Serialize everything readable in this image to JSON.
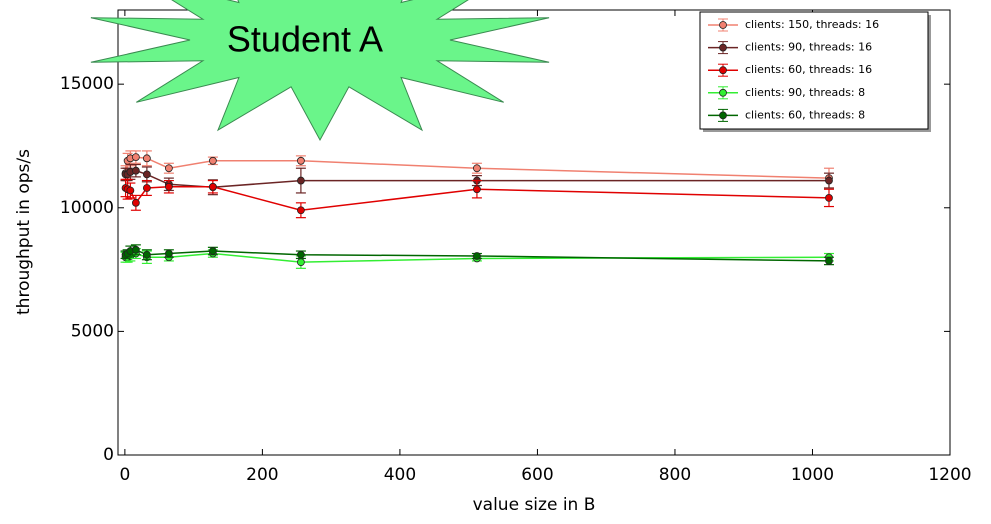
{
  "chart_data": {
    "type": "line",
    "annotation": "Student A",
    "xlabel": "value size in B",
    "ylabel": "throughput in ops/s",
    "x": [
      1,
      4,
      8,
      16,
      32,
      64,
      128,
      256,
      512,
      1024
    ],
    "xlim": [
      -10,
      1200
    ],
    "xticks": [
      0,
      200,
      400,
      600,
      800,
      1000,
      1200
    ],
    "ylim": [
      0,
      18000
    ],
    "yticks": [
      0,
      5000,
      10000,
      15000
    ],
    "legend": "upper right",
    "series": [
      {
        "name": "clients: 150, threads: 16",
        "color": "#f08070",
        "values": [
          11400,
          11900,
          12000,
          12050,
          12000,
          11600,
          11900,
          11900,
          11600,
          11200
        ],
        "errors": [
          300,
          300,
          300,
          250,
          300,
          200,
          150,
          200,
          200,
          400
        ]
      },
      {
        "name": "clients: 90, threads: 16",
        "color": "#6b2525",
        "values": [
          11350,
          11350,
          11450,
          11500,
          11350,
          10950,
          10830,
          11100,
          11100,
          11100
        ],
        "errors": [
          250,
          250,
          300,
          250,
          300,
          250,
          300,
          500,
          200,
          300
        ]
      },
      {
        "name": "clients: 60, threads: 16",
        "color": "#e00000",
        "values": [
          10800,
          10750,
          10700,
          10200,
          10800,
          10850,
          10850,
          9900,
          10750,
          10400
        ],
        "errors": [
          350,
          400,
          300,
          300,
          300,
          250,
          250,
          300,
          350,
          350
        ]
      },
      {
        "name": "clients: 90, threads: 8",
        "color": "#33ee33",
        "values": [
          8000,
          8000,
          8050,
          8150,
          8000,
          8000,
          8150,
          7800,
          7950,
          8000
        ],
        "errors": [
          200,
          200,
          200,
          200,
          250,
          150,
          150,
          250,
          100,
          150
        ]
      },
      {
        "name": "clients: 60, threads: 8",
        "color": "#006600",
        "values": [
          8100,
          8150,
          8250,
          8300,
          8100,
          8150,
          8250,
          8100,
          8050,
          7850
        ],
        "errors": [
          150,
          150,
          200,
          200,
          200,
          150,
          150,
          150,
          100,
          150
        ]
      }
    ]
  }
}
